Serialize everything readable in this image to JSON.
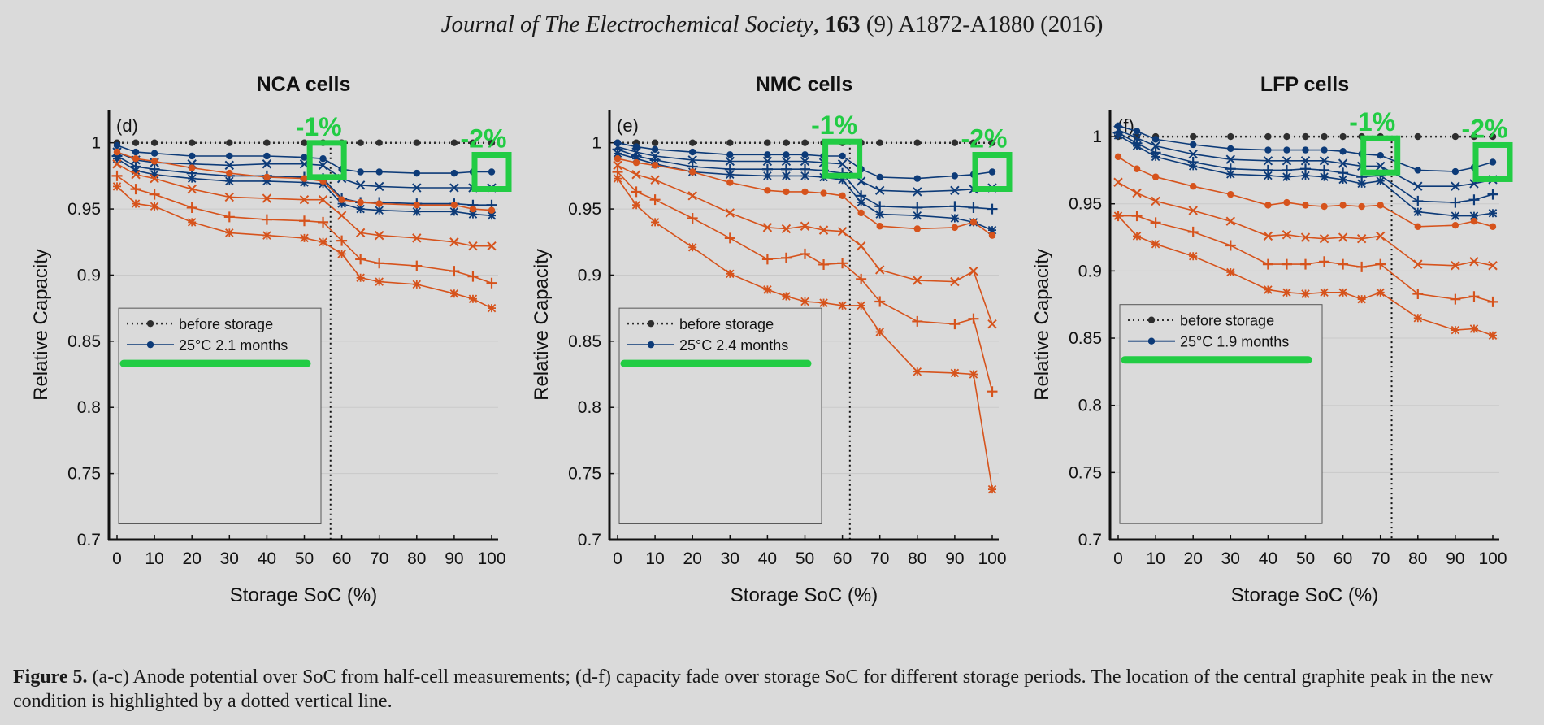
{
  "header": {
    "journal": "Journal of The Electrochemical Society",
    "volume": "163",
    "issue_pages": "(9) A1872-A1880 (2016)"
  },
  "caption": {
    "label": "Figure 5.",
    "text": "(a-c) Anode potential over SoC from half-cell measurements; (d-f) capacity fade over storage SoC for different storage periods. The location of the central graphite peak in the new condition is highlighted by a dotted vertical line."
  },
  "colors": {
    "before": "#2e2e2e",
    "blue": "#0d3b78",
    "orange": "#d6531c",
    "highlight": "#22cc44"
  },
  "chart_data": [
    {
      "type": "line",
      "title": "NCA cells",
      "panel_label": "(d)",
      "xlabel": "Storage SoC (%)",
      "ylabel": "Relative Capacity",
      "xlim": [
        0,
        100
      ],
      "ylim": [
        0.7,
        1.025
      ],
      "xticks": [
        0,
        10,
        20,
        30,
        40,
        50,
        60,
        70,
        80,
        90,
        100
      ],
      "yticks": [
        0.7,
        0.75,
        0.8,
        0.85,
        0.9,
        0.95,
        1
      ],
      "ytick_labels": [
        "0.7",
        "0.75",
        "0.8",
        "0.85",
        "0.9",
        "0.95",
        "1"
      ],
      "grid": true,
      "legend_position": "bottom-left",
      "legend": [
        "before storage",
        "25°C  2.1 months"
      ],
      "vline": 57,
      "annotations": [
        {
          "text": "-1%",
          "x": 56,
          "y": 0.987
        },
        {
          "text": "-2%",
          "x": 100,
          "y": 0.978
        }
      ],
      "x": [
        0,
        5,
        10,
        20,
        30,
        40,
        50,
        55,
        60,
        65,
        70,
        80,
        90,
        95,
        100
      ],
      "series": [
        {
          "style": "before",
          "marker": "dot",
          "values": [
            1,
            1,
            1,
            1,
            1,
            1,
            1,
            1,
            1,
            1,
            1,
            1,
            1,
            1,
            1
          ]
        },
        {
          "style": "blue",
          "marker": "dot",
          "values": [
            0.998,
            0.993,
            0.992,
            0.99,
            0.99,
            0.99,
            0.989,
            0.988,
            0.98,
            0.978,
            0.978,
            0.977,
            0.977,
            0.978,
            0.978
          ]
        },
        {
          "style": "blue",
          "marker": "x",
          "values": [
            0.993,
            0.987,
            0.985,
            0.984,
            0.983,
            0.984,
            0.984,
            0.983,
            0.973,
            0.968,
            0.967,
            0.966,
            0.966,
            0.966,
            0.966
          ]
        },
        {
          "style": "blue",
          "marker": "plus",
          "values": [
            0.99,
            0.982,
            0.98,
            0.977,
            0.975,
            0.975,
            0.974,
            0.973,
            0.958,
            0.955,
            0.955,
            0.954,
            0.954,
            0.953,
            0.953
          ]
        },
        {
          "style": "blue",
          "marker": "star",
          "values": [
            0.988,
            0.979,
            0.976,
            0.973,
            0.971,
            0.971,
            0.97,
            0.969,
            0.954,
            0.95,
            0.949,
            0.948,
            0.948,
            0.946,
            0.945
          ]
        },
        {
          "style": "orange",
          "marker": "dot",
          "values": [
            0.993,
            0.988,
            0.986,
            0.981,
            0.977,
            0.974,
            0.973,
            0.971,
            0.957,
            0.955,
            0.954,
            0.953,
            0.953,
            0.95,
            0.949
          ]
        },
        {
          "style": "orange",
          "marker": "x",
          "values": [
            0.984,
            0.976,
            0.973,
            0.965,
            0.959,
            0.958,
            0.957,
            0.957,
            0.945,
            0.932,
            0.93,
            0.928,
            0.925,
            0.922,
            0.922
          ]
        },
        {
          "style": "orange",
          "marker": "plus",
          "values": [
            0.975,
            0.965,
            0.961,
            0.951,
            0.944,
            0.942,
            0.941,
            0.94,
            0.926,
            0.912,
            0.909,
            0.907,
            0.903,
            0.899,
            0.894
          ]
        },
        {
          "style": "orange",
          "marker": "star",
          "values": [
            0.967,
            0.954,
            0.952,
            0.94,
            0.932,
            0.93,
            0.928,
            0.925,
            0.916,
            0.898,
            0.895,
            0.893,
            0.886,
            0.882,
            0.875
          ]
        }
      ]
    },
    {
      "type": "line",
      "title": "NMC cells",
      "panel_label": "(e)",
      "xlabel": "Storage SoC (%)",
      "ylabel": "Relative Capacity",
      "xlim": [
        0,
        100
      ],
      "ylim": [
        0.7,
        1.025
      ],
      "xticks": [
        0,
        10,
        20,
        30,
        40,
        50,
        60,
        70,
        80,
        90,
        100
      ],
      "yticks": [
        0.7,
        0.75,
        0.8,
        0.85,
        0.9,
        0.95,
        1
      ],
      "ytick_labels": [
        "0.7",
        "0.75",
        "0.8",
        "0.85",
        "0.9",
        "0.95",
        "1"
      ],
      "grid": true,
      "legend_position": "bottom-left",
      "legend": [
        "before storage",
        "25°C  2.4 months"
      ],
      "vline": 62,
      "annotations": [
        {
          "text": "-1%",
          "x": 60,
          "y": 0.988
        },
        {
          "text": "-2%",
          "x": 100,
          "y": 0.978
        }
      ],
      "x": [
        0,
        5,
        10,
        20,
        30,
        40,
        45,
        50,
        55,
        60,
        65,
        70,
        80,
        90,
        95,
        100
      ],
      "series": [
        {
          "style": "before",
          "marker": "dot",
          "values": [
            1,
            1,
            1,
            1,
            1,
            1,
            1,
            1,
            1,
            1,
            1,
            1,
            1,
            1,
            1,
            1
          ]
        },
        {
          "style": "blue",
          "marker": "dot",
          "values": [
            1,
            0.997,
            0.995,
            0.993,
            0.991,
            0.991,
            0.991,
            0.991,
            0.99,
            0.99,
            0.98,
            0.974,
            0.973,
            0.975,
            0.976,
            0.978
          ]
        },
        {
          "style": "blue",
          "marker": "x",
          "values": [
            0.997,
            0.993,
            0.99,
            0.987,
            0.986,
            0.986,
            0.986,
            0.986,
            0.985,
            0.984,
            0.971,
            0.964,
            0.963,
            0.964,
            0.965,
            0.966
          ]
        },
        {
          "style": "blue",
          "marker": "plus",
          "values": [
            0.995,
            0.99,
            0.987,
            0.982,
            0.98,
            0.98,
            0.98,
            0.98,
            0.979,
            0.977,
            0.96,
            0.952,
            0.951,
            0.952,
            0.951,
            0.95
          ]
        },
        {
          "style": "blue",
          "marker": "star",
          "values": [
            0.992,
            0.988,
            0.984,
            0.978,
            0.976,
            0.975,
            0.975,
            0.975,
            0.974,
            0.972,
            0.955,
            0.946,
            0.945,
            0.943,
            0.94,
            0.934
          ]
        },
        {
          "style": "orange",
          "marker": "dot",
          "values": [
            0.988,
            0.985,
            0.983,
            0.978,
            0.97,
            0.964,
            0.963,
            0.963,
            0.962,
            0.96,
            0.947,
            0.937,
            0.935,
            0.936,
            0.94,
            0.93
          ]
        },
        {
          "style": "orange",
          "marker": "x",
          "values": [
            0.983,
            0.976,
            0.972,
            0.96,
            0.947,
            0.936,
            0.935,
            0.937,
            0.934,
            0.933,
            0.922,
            0.904,
            0.896,
            0.895,
            0.903,
            0.863
          ]
        },
        {
          "style": "orange",
          "marker": "plus",
          "values": [
            0.978,
            0.963,
            0.957,
            0.943,
            0.928,
            0.912,
            0.913,
            0.916,
            0.908,
            0.909,
            0.897,
            0.88,
            0.865,
            0.863,
            0.867,
            0.812
          ]
        },
        {
          "style": "orange",
          "marker": "star",
          "values": [
            0.973,
            0.953,
            0.94,
            0.921,
            0.901,
            0.889,
            0.884,
            0.88,
            0.879,
            0.877,
            0.877,
            0.857,
            0.827,
            0.826,
            0.825,
            0.738
          ]
        }
      ]
    },
    {
      "type": "line",
      "title": "LFP cells",
      "panel_label": "(f)",
      "xlabel": "Storage SoC (%)",
      "ylabel": "Relative Capacity",
      "xlim": [
        0,
        100
      ],
      "ylim": [
        0.7,
        1.02
      ],
      "xticks": [
        0,
        10,
        20,
        30,
        40,
        50,
        60,
        70,
        80,
        90,
        100
      ],
      "yticks": [
        0.7,
        0.75,
        0.8,
        0.85,
        0.9,
        0.95,
        1
      ],
      "ytick_labels": [
        "0.7",
        "0.75",
        "0.8",
        "0.85",
        "0.9",
        "0.95",
        "1"
      ],
      "grid": true,
      "legend_position": "bottom-left",
      "legend": [
        "before storage",
        "25°C  1.9 months"
      ],
      "vline": 73,
      "annotations": [
        {
          "text": "-1%",
          "x": 70,
          "y": 0.986
        },
        {
          "text": "-2%",
          "x": 100,
          "y": 0.981
        }
      ],
      "x": [
        0,
        5,
        10,
        20,
        30,
        40,
        45,
        50,
        55,
        60,
        65,
        70,
        80,
        90,
        95,
        100
      ],
      "series": [
        {
          "style": "before",
          "marker": "dot",
          "values": [
            1,
            1,
            1,
            1,
            1,
            1,
            1,
            1,
            1,
            1,
            1,
            1,
            1,
            1,
            1,
            1
          ]
        },
        {
          "style": "blue",
          "marker": "dot",
          "values": [
            1.008,
            1.004,
            0.998,
            0.994,
            0.991,
            0.99,
            0.99,
            0.99,
            0.99,
            0.989,
            0.987,
            0.986,
            0.975,
            0.974,
            0.977,
            0.981
          ]
        },
        {
          "style": "blue",
          "marker": "x",
          "values": [
            1.005,
            0.999,
            0.993,
            0.987,
            0.983,
            0.982,
            0.982,
            0.982,
            0.982,
            0.98,
            0.978,
            0.978,
            0.963,
            0.963,
            0.965,
            0.968
          ]
        },
        {
          "style": "blue",
          "marker": "plus",
          "values": [
            1.003,
            0.995,
            0.988,
            0.981,
            0.976,
            0.975,
            0.975,
            0.976,
            0.975,
            0.973,
            0.97,
            0.971,
            0.952,
            0.951,
            0.953,
            0.957
          ]
        },
        {
          "style": "blue",
          "marker": "star",
          "values": [
            1.001,
            0.993,
            0.985,
            0.978,
            0.972,
            0.971,
            0.97,
            0.971,
            0.97,
            0.968,
            0.965,
            0.967,
            0.944,
            0.941,
            0.941,
            0.943
          ]
        },
        {
          "style": "orange",
          "marker": "dot",
          "values": [
            0.985,
            0.976,
            0.97,
            0.963,
            0.957,
            0.949,
            0.951,
            0.949,
            0.948,
            0.949,
            0.948,
            0.949,
            0.933,
            0.934,
            0.937,
            0.933
          ]
        },
        {
          "style": "orange",
          "marker": "x",
          "values": [
            0.966,
            0.958,
            0.952,
            0.945,
            0.937,
            0.926,
            0.927,
            0.925,
            0.924,
            0.925,
            0.924,
            0.926,
            0.905,
            0.904,
            0.907,
            0.904
          ]
        },
        {
          "style": "orange",
          "marker": "plus",
          "values": [
            0.941,
            0.941,
            0.936,
            0.929,
            0.919,
            0.905,
            0.905,
            0.905,
            0.907,
            0.905,
            0.903,
            0.905,
            0.883,
            0.879,
            0.881,
            0.877
          ]
        },
        {
          "style": "orange",
          "marker": "star",
          "values": [
            0.941,
            0.926,
            0.92,
            0.911,
            0.899,
            0.886,
            0.884,
            0.883,
            0.884,
            0.884,
            0.879,
            0.884,
            0.865,
            0.856,
            0.857,
            0.852
          ]
        }
      ]
    }
  ]
}
